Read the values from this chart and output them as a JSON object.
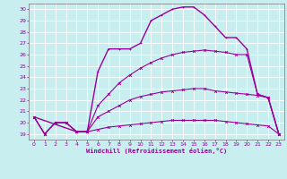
{
  "xlabel": "Windchill (Refroidissement éolien,°C)",
  "background_color": "#c8eef0",
  "grid_color": "#ffffff",
  "line_color": "#990099",
  "xlim": [
    -0.5,
    23.5
  ],
  "ylim": [
    18.5,
    30.5
  ],
  "xticks": [
    0,
    1,
    2,
    3,
    4,
    5,
    6,
    7,
    8,
    9,
    10,
    11,
    12,
    13,
    14,
    15,
    16,
    17,
    18,
    19,
    20,
    21,
    22,
    23
  ],
  "yticks": [
    19,
    20,
    21,
    22,
    23,
    24,
    25,
    26,
    27,
    28,
    29,
    30
  ],
  "series": [
    {
      "x": [
        0,
        1,
        2,
        3,
        4,
        5,
        6,
        7,
        8,
        9,
        10,
        11,
        12,
        13,
        14,
        15,
        16,
        17,
        18,
        19,
        20,
        21,
        22,
        23
      ],
      "y": [
        20.5,
        19.0,
        20.0,
        20.0,
        19.2,
        19.2,
        19.4,
        19.6,
        19.7,
        19.8,
        19.9,
        20.0,
        20.1,
        20.2,
        20.2,
        20.2,
        20.2,
        20.2,
        20.1,
        20.0,
        19.9,
        19.8,
        19.7,
        19.0
      ],
      "marker": "x",
      "lw": 0.8
    },
    {
      "x": [
        0,
        1,
        2,
        3,
        4,
        5,
        6,
        7,
        8,
        9,
        10,
        11,
        12,
        13,
        14,
        15,
        16,
        17,
        18,
        19,
        20,
        21,
        22,
        23
      ],
      "y": [
        20.5,
        19.0,
        20.0,
        20.0,
        19.2,
        19.2,
        20.5,
        21.0,
        21.5,
        22.0,
        22.3,
        22.5,
        22.7,
        22.8,
        22.9,
        23.0,
        23.0,
        22.8,
        22.7,
        22.6,
        22.5,
        22.4,
        22.2,
        19.0
      ],
      "marker": "x",
      "lw": 0.8
    },
    {
      "x": [
        0,
        1,
        2,
        3,
        4,
        5,
        6,
        7,
        8,
        9,
        10,
        11,
        12,
        13,
        14,
        15,
        16,
        17,
        18,
        19,
        20,
        21,
        22,
        23
      ],
      "y": [
        20.5,
        19.0,
        20.0,
        20.0,
        19.2,
        19.2,
        21.5,
        22.5,
        23.5,
        24.2,
        24.8,
        25.3,
        25.7,
        26.0,
        26.2,
        26.3,
        26.4,
        26.3,
        26.2,
        26.0,
        26.0,
        22.5,
        22.2,
        19.0
      ],
      "marker": "x",
      "lw": 0.8
    },
    {
      "x": [
        0,
        4,
        5,
        6,
        7,
        8,
        9,
        10,
        11,
        12,
        13,
        14,
        15,
        16,
        17,
        18,
        19,
        20,
        21,
        22,
        23
      ],
      "y": [
        20.5,
        19.2,
        19.2,
        24.5,
        26.5,
        26.5,
        26.5,
        27.0,
        29.0,
        29.5,
        30.0,
        30.2,
        30.2,
        29.5,
        28.5,
        27.5,
        27.5,
        26.5,
        22.5,
        22.2,
        19.0
      ],
      "marker": "+",
      "lw": 1.0
    }
  ]
}
